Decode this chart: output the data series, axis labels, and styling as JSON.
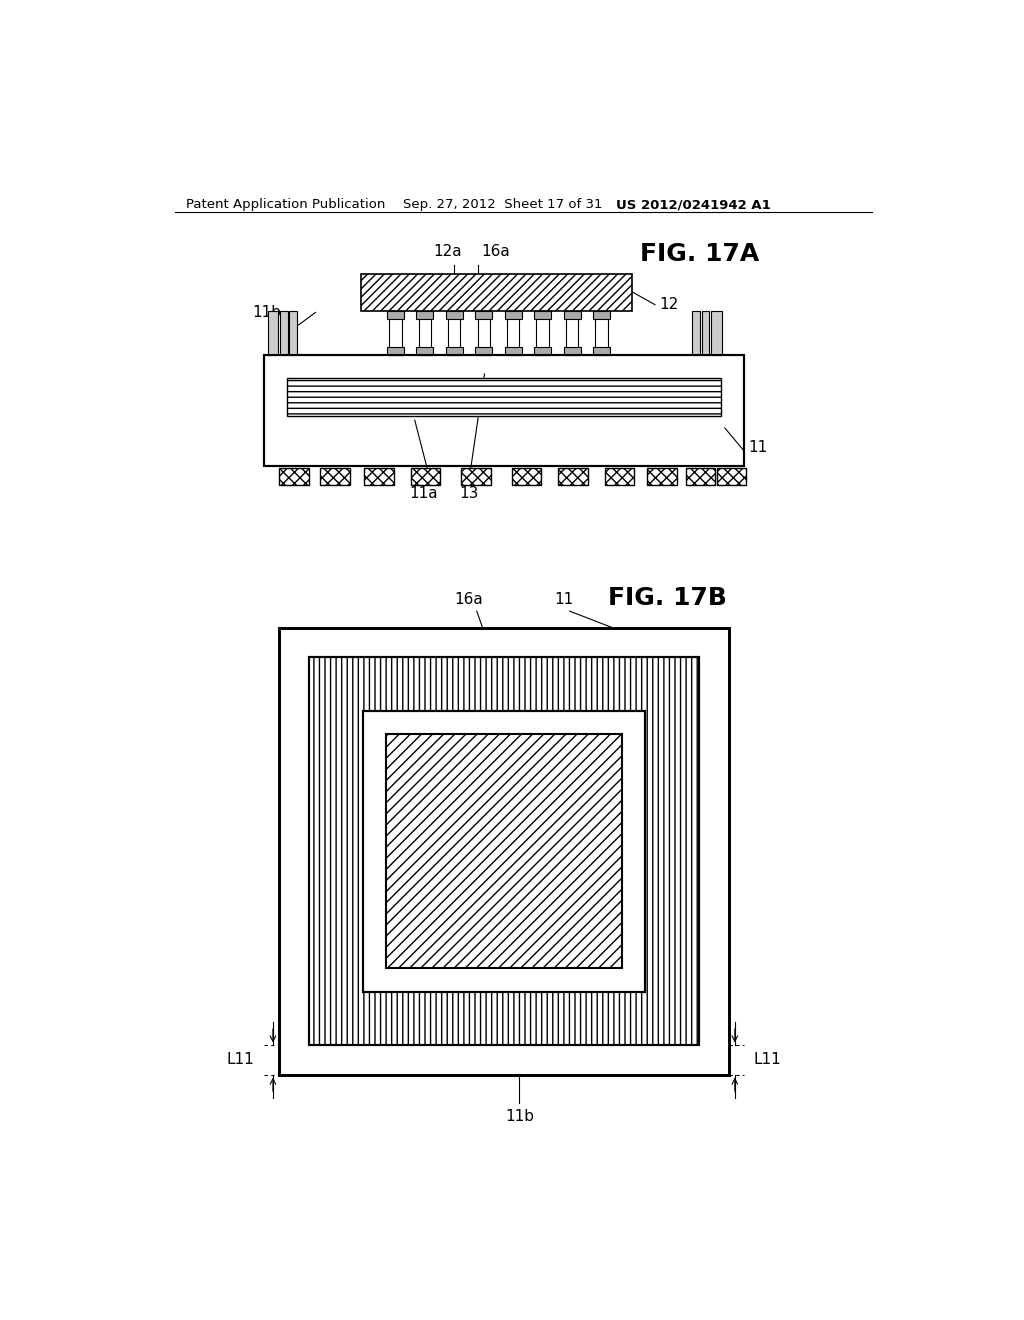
{
  "background_color": "#ffffff",
  "header_text": "Patent Application Publication",
  "header_date": "Sep. 27, 2012  Sheet 17 of 31",
  "header_patent": "US 2012/0241942 A1",
  "fig17a_title": "FIG. 17A",
  "fig17b_title": "FIG. 17B",
  "header_fontsize": 10,
  "label_fontsize": 11
}
